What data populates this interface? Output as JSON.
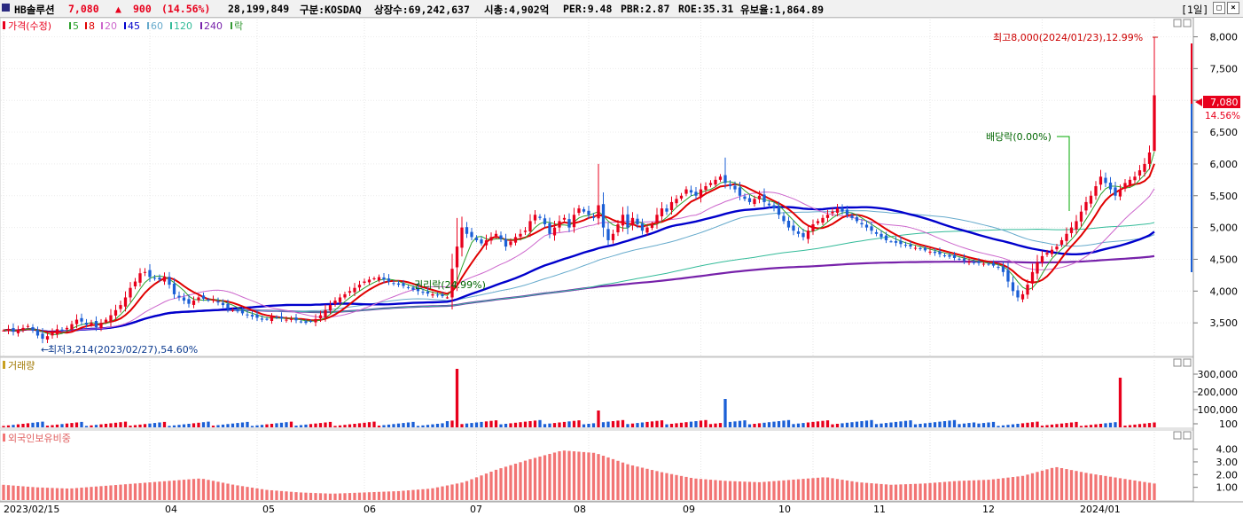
{
  "header": {
    "stock_name": "HB솔루션",
    "price": "7,080",
    "change_arrow": "▲",
    "change": "900",
    "change_pct": "(14.56%)",
    "volume": "28,199,849",
    "market": "구분:KOSDAQ",
    "listed_shares": "상장수:69,242,637",
    "market_cap": "시총:4,902억",
    "per": "PER:9.48",
    "pbr": "PBR:2.87",
    "roe": "ROE:35.31",
    "float_ratio": "유보율:1,864.89",
    "period_button": "[1일]"
  },
  "legend": {
    "price_label": "가격(수정)",
    "items": [
      {
        "label": "5",
        "color": "#2ca02c"
      },
      {
        "label": "8",
        "color": "#e00000"
      },
      {
        "label": "20",
        "color": "#cc66cc"
      },
      {
        "label": "45",
        "color": "#0000cc"
      },
      {
        "label": "60",
        "color": "#66aacc"
      },
      {
        "label": "120",
        "color": "#33bb99"
      },
      {
        "label": "240",
        "color": "#7722aa"
      },
      {
        "label": "락",
        "color": "#339933"
      }
    ]
  },
  "colors": {
    "up": "#e8001c",
    "down": "#1b5fd6",
    "foreign": "#f27474"
  },
  "chart_data": [
    {
      "type": "candlestick",
      "panel": "price",
      "x_ticks": [
        "2023/02/15",
        "04",
        "05",
        "06",
        "07",
        "08",
        "09",
        "10",
        "11",
        "12",
        "2024/01"
      ],
      "y_ticks": [
        "3,500",
        "4,000",
        "4,500",
        "5,000",
        "5,500",
        "6,000",
        "6,500",
        "7,000",
        "7,500",
        "8,000"
      ],
      "ylim": [
        3000,
        8300
      ],
      "current_price_label": "7,080",
      "current_change_label": "14.56%",
      "annotations": {
        "high": "최고8,000(2024/01/23),12.99%",
        "low": "최저3,214(2023/02/27),54.60%",
        "dividend": "배당락(0.00%)",
        "rights": "권리락(24.99%)"
      },
      "series_close": [
        3380,
        3400,
        3360,
        3390,
        3420,
        3450,
        3380,
        3300,
        3250,
        3290,
        3350,
        3400,
        3380,
        3420,
        3480,
        3550,
        3520,
        3470,
        3500,
        3430,
        3500,
        3550,
        3620,
        3700,
        3780,
        3900,
        4050,
        4150,
        4280,
        4300,
        4220,
        4200,
        4180,
        4230,
        4100,
        3950,
        3900,
        3850,
        3800,
        3850,
        3900,
        3880,
        3850,
        3870,
        3820,
        3780,
        3720,
        3700,
        3680,
        3650,
        3620,
        3600,
        3580,
        3550,
        3560,
        3600,
        3580,
        3570,
        3550,
        3560,
        3540,
        3520,
        3500,
        3520,
        3560,
        3620,
        3700,
        3780,
        3850,
        3900,
        3950,
        4000,
        4050,
        4100,
        4150,
        4180,
        4200,
        4220,
        4180,
        4150,
        4120,
        4100,
        4080,
        4050,
        4020,
        4000,
        3980,
        3960,
        3950,
        3930,
        3920,
        3900,
        4350,
        4700,
        5000,
        4900,
        4850,
        4800,
        4750,
        4800,
        4850,
        4900,
        4820,
        4700,
        4780,
        4850,
        4900,
        4950,
        5100,
        5200,
        5150,
        5050,
        4900,
        5000,
        5100,
        5150,
        5000,
        5200,
        5300,
        5250,
        5200,
        5150,
        5350,
        5000,
        4800,
        4900,
        5050,
        5200,
        5000,
        5150,
        5050,
        4950,
        5000,
        5050,
        5200,
        5300,
        5250,
        5400,
        5450,
        5500,
        5600,
        5550,
        5500,
        5600,
        5650,
        5700,
        5750,
        5800,
        5700,
        5650,
        5600,
        5500,
        5450,
        5400,
        5450,
        5500,
        5400,
        5350,
        5300,
        5200,
        5100,
        5000,
        4950,
        4900,
        4850,
        4950,
        5050,
        5100,
        5150,
        5200,
        5250,
        5300,
        5250,
        5200,
        5150,
        5100,
        5050,
        5000,
        4950,
        4900,
        4850,
        4800,
        4780,
        4760,
        4740,
        4720,
        4700,
        4680,
        4660,
        4640,
        4620,
        4600,
        4580,
        4560,
        4540,
        4520,
        4500,
        4480,
        4460,
        4450,
        4440,
        4430,
        4420,
        4400,
        4380,
        4300,
        4150,
        4000,
        3900,
        3950,
        4100,
        4300,
        4450,
        4550,
        4600,
        4650,
        4700,
        4800,
        4900,
        5000,
        5100,
        5250,
        5400,
        5500,
        5650,
        5800,
        5700,
        5600,
        5500,
        5600,
        5700,
        5750,
        5800,
        5900,
        6000,
        6180,
        7080
      ]
    },
    {
      "type": "bar",
      "panel": "volume",
      "title": "거래량",
      "y_ticks": [
        "100",
        "100,000",
        "200,000",
        "300,000"
      ],
      "ylim": [
        0,
        330000
      ],
      "spikes": [
        {
          "index": 93,
          "value": 330000
        },
        {
          "index": 229,
          "value": 280000
        },
        {
          "index": 148,
          "value": 160000
        },
        {
          "index": 122,
          "value": 95000
        }
      ]
    },
    {
      "type": "bar",
      "panel": "foreign_ownership",
      "title": "외국인보유비중",
      "y_ticks": [
        "1.00",
        "2.00",
        "3.00",
        "4.00"
      ],
      "ylim": [
        0,
        4.6
      ],
      "values_sampled": [
        1.2,
        1.0,
        0.9,
        1.1,
        1.3,
        1.5,
        1.7,
        1.2,
        0.8,
        0.6,
        0.5,
        0.6,
        0.7,
        0.9,
        1.4,
        2.4,
        3.2,
        3.9,
        3.7,
        2.8,
        2.2,
        1.7,
        1.5,
        1.4,
        1.6,
        1.8,
        1.4,
        1.2,
        1.3,
        1.5,
        1.6,
        1.9,
        2.6,
        2.1,
        1.7,
        1.3
      ]
    }
  ]
}
